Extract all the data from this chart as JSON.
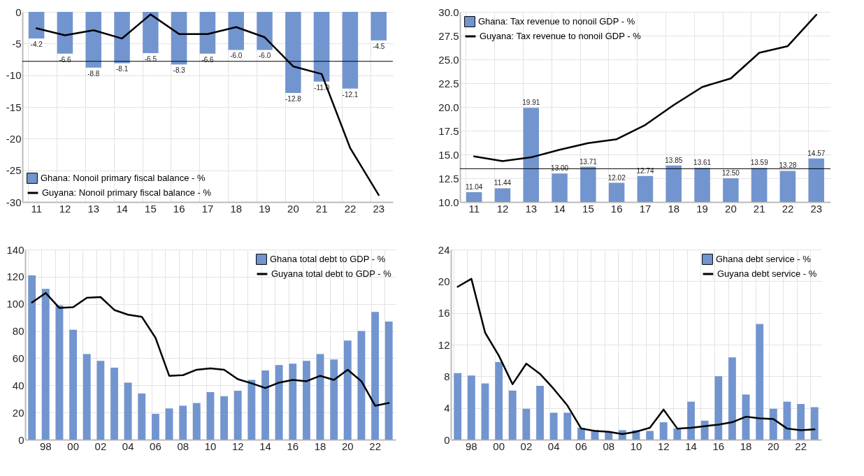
{
  "chart_data": [
    {
      "type": "bar",
      "categories": [
        "11",
        "12",
        "13",
        "14",
        "15",
        "16",
        "17",
        "18",
        "19",
        "20",
        "21",
        "22",
        "23"
      ],
      "ylim": [
        -30,
        0
      ],
      "yticks": [
        -30,
        -25,
        -20,
        -15,
        -10,
        -5,
        0
      ],
      "grid": true,
      "legend": "bottom left",
      "series": [
        {
          "name": "Ghana: Nonoil primary fiscal balance - %",
          "color": "#7295cf",
          "values": [
            -4.2,
            -6.6,
            -8.8,
            -8.1,
            -6.5,
            -8.3,
            -6.6,
            -6.0,
            -6.0,
            -12.8,
            -11.0,
            -12.1,
            -4.5
          ],
          "value_labels": [
            "-4.2",
            "-6.6",
            "-8.8",
            "-8.1",
            "-6.5",
            "-8.3",
            "-6.6",
            "-6.0",
            "-6.0",
            "-12.8",
            "-11.0",
            "-12.1",
            "-4.5"
          ]
        },
        {
          "name": "Guyana: Nonoil primary fiscal balance - %",
          "type": "line",
          "color": "#000000",
          "values": [
            -2.6,
            -3.7,
            -2.9,
            -4.2,
            -0.4,
            -3.5,
            -3.5,
            -2.4,
            -4.0,
            -8.6,
            -9.8,
            -21.5,
            -28.9
          ]
        }
      ],
      "ref_lines": [
        {
          "axis": "y",
          "value": -7.8,
          "color": "#000000"
        }
      ]
    },
    {
      "type": "bar",
      "categories": [
        "11",
        "12",
        "13",
        "14",
        "15",
        "16",
        "17",
        "18",
        "19",
        "20",
        "21",
        "22",
        "23"
      ],
      "ylim": [
        10,
        30
      ],
      "yticks": [
        {
          "value": 10,
          "label": "10.0"
        },
        {
          "value": 12.5,
          "label": "12.5"
        },
        {
          "value": 15,
          "label": "15.0"
        },
        {
          "value": 17.5,
          "label": "17.5"
        },
        {
          "value": 20,
          "label": "20.0"
        },
        {
          "value": 22.5,
          "label": "22.5"
        },
        {
          "value": 25,
          "label": "25.0"
        },
        {
          "value": 27.5,
          "label": "27.5"
        },
        {
          "value": 30,
          "label": "30.0"
        }
      ],
      "grid": true,
      "legend": "top left",
      "series": [
        {
          "name": "Ghana: Tax revenue to nonoil GDP - %",
          "color": "#7295cf",
          "values": [
            11.04,
            11.44,
            19.91,
            13.0,
            13.71,
            12.02,
            12.74,
            13.85,
            13.61,
            12.5,
            13.59,
            13.28,
            14.57
          ],
          "value_labels": [
            "11.04",
            "11.44",
            "19.91",
            "13.00",
            "13.71",
            "12.02",
            "12.74",
            "13.85",
            "13.61",
            "12.50",
            "13.59",
            "13.28",
            "14.57"
          ]
        },
        {
          "name": "Guyana: Tax revenue to nonoil GDP - %",
          "type": "line",
          "color": "#000000",
          "values": [
            14.8,
            14.3,
            14.7,
            15.5,
            16.2,
            16.6,
            18.1,
            20.2,
            22.1,
            23.0,
            25.7,
            26.4,
            29.7
          ]
        }
      ],
      "ref_lines": [
        {
          "axis": "y",
          "value": 13.5,
          "color": "#000000"
        }
      ]
    },
    {
      "type": "bar",
      "categories": [
        null,
        "98",
        null,
        "00",
        null,
        "02",
        null,
        "04",
        null,
        "06",
        null,
        "08",
        null,
        "10",
        null,
        "12",
        null,
        "14",
        null,
        "16",
        null,
        "18",
        null,
        "20",
        null,
        "22",
        null
      ],
      "ylim": [
        0,
        140
      ],
      "yticks": [
        0,
        20,
        40,
        60,
        80,
        100,
        120,
        140
      ],
      "grid": true,
      "legend": "top right",
      "series": [
        {
          "name": "Ghana total debt to GDP - %",
          "color": "#7295cf",
          "values": [
            121,
            111,
            99,
            81,
            63,
            58,
            53,
            42,
            34,
            19,
            23,
            25,
            27,
            35,
            32,
            36,
            44,
            51,
            55,
            56,
            58,
            63,
            59,
            73,
            80,
            94,
            87
          ]
        },
        {
          "name": "Guyana total debt to GDP - %",
          "type": "line",
          "color": "#000000",
          "values": [
            101,
            108,
            97,
            97.5,
            104.5,
            105,
            95.5,
            92,
            90.5,
            75,
            47,
            47.5,
            51.5,
            52.5,
            51.5,
            44.5,
            41.5,
            38,
            42,
            44,
            43,
            47,
            44,
            51.5,
            43,
            25,
            27
          ]
        }
      ]
    },
    {
      "type": "bar",
      "categories": [
        null,
        "98",
        null,
        "00",
        null,
        "02",
        null,
        "04",
        null,
        "06",
        null,
        "08",
        null,
        "10",
        null,
        "12",
        null,
        "14",
        null,
        "16",
        null,
        "18",
        null,
        "20",
        null,
        "22",
        null
      ],
      "ylim": [
        0,
        24
      ],
      "yticks": [
        0,
        4,
        8,
        12,
        16,
        20,
        24
      ],
      "grid": true,
      "legend": "top right",
      "series": [
        {
          "name": "Ghana debt service - %",
          "color": "#7295cf",
          "values": [
            8.4,
            8.1,
            7.1,
            9.8,
            6.2,
            3.9,
            6.8,
            3.4,
            3.4,
            1.5,
            1.2,
            1.0,
            1.2,
            1.2,
            1.1,
            2.2,
            1.4,
            4.8,
            2.4,
            8.0,
            10.4,
            5.7,
            14.6,
            3.9,
            4.8,
            4.5,
            4.1
          ]
        },
        {
          "name": "Guyana debt service - %",
          "type": "line",
          "color": "#000000",
          "values": [
            19.3,
            20.3,
            13.5,
            10.6,
            7.0,
            9.6,
            8.3,
            6.4,
            4.3,
            1.4,
            1.1,
            1.0,
            0.7,
            1.0,
            1.5,
            3.8,
            1.4,
            1.5,
            1.7,
            1.9,
            2.2,
            2.9,
            2.7,
            2.6,
            1.4,
            1.2,
            1.3
          ]
        }
      ]
    }
  ]
}
